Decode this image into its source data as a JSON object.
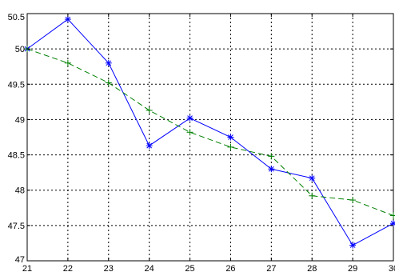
{
  "chart_data": {
    "type": "line",
    "title": "",
    "xlabel": "",
    "ylabel": "",
    "xlim": [
      21,
      30
    ],
    "ylim": [
      47,
      50.5
    ],
    "grid": true,
    "x_ticks": [
      21,
      22,
      23,
      24,
      25,
      26,
      27,
      28,
      29,
      30
    ],
    "y_ticks": [
      47,
      47.5,
      48,
      48.5,
      49,
      49.5,
      50,
      50.5
    ],
    "x_tick_labels": [
      "21",
      "22",
      "23",
      "24",
      "25",
      "26",
      "27",
      "28",
      "29",
      "30"
    ],
    "y_tick_labels": [
      "47",
      "47.5",
      "48",
      "48.5",
      "49",
      "49.5",
      "50",
      "50.5"
    ],
    "series": [
      {
        "color": "#0000ff",
        "line_style": "solid",
        "marker": "asterisk",
        "x": [
          21,
          22,
          23,
          24,
          25,
          26,
          27,
          28,
          29,
          30
        ],
        "y": [
          50.0,
          50.42,
          49.8,
          48.63,
          49.02,
          48.75,
          48.3,
          48.17,
          47.22,
          47.53
        ]
      },
      {
        "color": "#008000",
        "line_style": "dashed",
        "marker": "plus",
        "x": [
          21,
          22,
          23,
          24,
          25,
          26,
          27,
          28,
          29,
          30
        ],
        "y": [
          50.0,
          49.8,
          49.52,
          49.13,
          48.82,
          48.61,
          48.48,
          47.92,
          47.86,
          47.64
        ]
      }
    ]
  }
}
